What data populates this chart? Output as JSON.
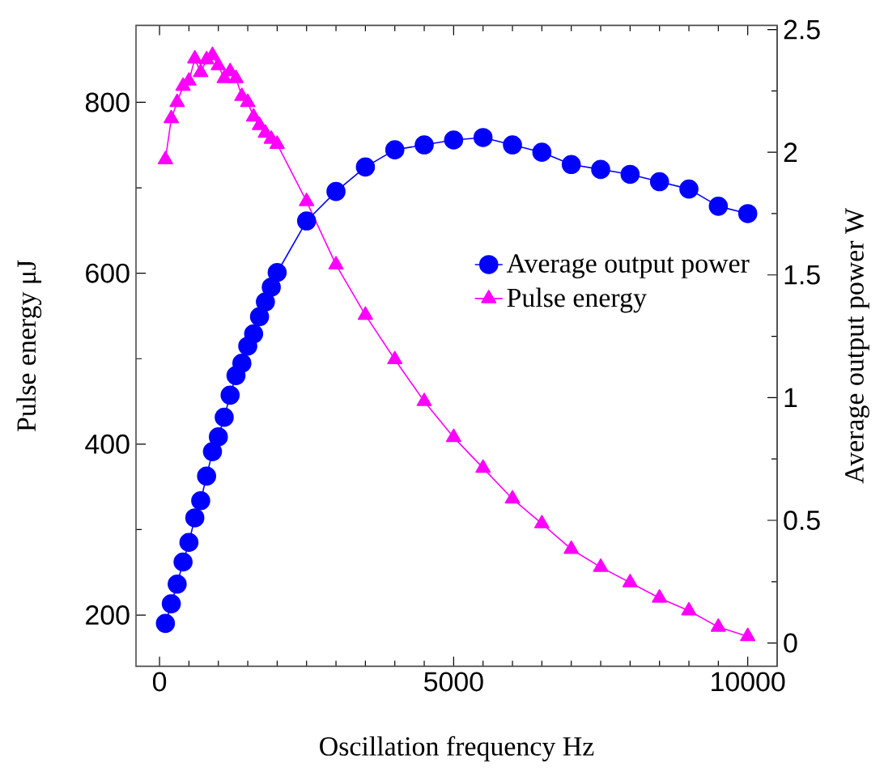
{
  "chart_data": {
    "type": "line",
    "xlabel": "Oscillation frequency Hz",
    "ylabel": "Pulse energy  μJ",
    "y2label": "Average output power W",
    "x": [
      100,
      200,
      300,
      400,
      500,
      600,
      700,
      800,
      900,
      1000,
      1100,
      1200,
      1300,
      1400,
      1500,
      1600,
      1700,
      1800,
      1900,
      2000,
      2500,
      3000,
      3500,
      4000,
      4500,
      5000,
      5500,
      6000,
      6500,
      7000,
      7500,
      8000,
      8500,
      9000,
      9500,
      10000
    ],
    "series": [
      {
        "name": "Average output power",
        "axis": "y2",
        "color": "#0000ff",
        "marker": "circle",
        "values": [
          0.08,
          0.16,
          0.24,
          0.33,
          0.41,
          0.51,
          0.58,
          0.68,
          0.78,
          0.84,
          0.92,
          1.01,
          1.09,
          1.14,
          1.21,
          1.26,
          1.33,
          1.39,
          1.45,
          1.51,
          1.72,
          1.84,
          1.94,
          2.01,
          2.03,
          2.05,
          2.06,
          2.03,
          2.0,
          1.95,
          1.93,
          1.91,
          1.88,
          1.85,
          1.78,
          1.75
        ]
      },
      {
        "name": "Pulse energy",
        "color": "#ff00ff",
        "marker": "triangle",
        "values": [
          733,
          781,
          800,
          819,
          825,
          851,
          835,
          850,
          855,
          843,
          828,
          836,
          828,
          807,
          800,
          783,
          773,
          764,
          757,
          751,
          684,
          610,
          551,
          499,
          450,
          408,
          372,
          336,
          307,
          277,
          256,
          238,
          220,
          205,
          186,
          175
        ]
      }
    ],
    "xlim": [
      -400,
      10500
    ],
    "ylim": [
      140,
      890
    ],
    "y2lim": [
      -0.095,
      2.517
    ],
    "xticks": [
      0,
      5000,
      10000
    ],
    "yticks": [
      200,
      400,
      600,
      800
    ],
    "y2ticks": [
      0,
      0.5,
      1,
      1.5,
      2,
      2.5
    ],
    "grid": false,
    "legend": "right",
    "line_style": "solid"
  }
}
